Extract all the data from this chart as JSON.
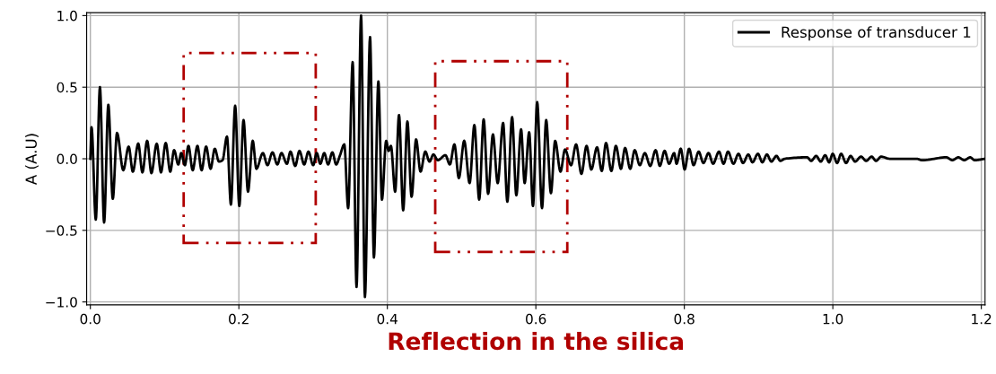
{
  "chart_data": {
    "type": "line",
    "xlabel": "Reflection in the silica",
    "ylabel": "A (A.U)",
    "xlim": [
      -0.005,
      1.205
    ],
    "ylim": [
      -1.02,
      1.02
    ],
    "xticks": [
      {
        "value": 0,
        "label": "0.0"
      },
      0.2,
      0.4,
      0.6,
      0.8,
      {
        "value": 1,
        "label": "1.0"
      },
      1.2
    ],
    "yticks": [
      {
        "value": -1,
        "label": "−1.0"
      },
      {
        "value": -0.5,
        "label": "−0.5"
      },
      {
        "value": 0,
        "label": "0.0"
      },
      0.5,
      {
        "value": 1,
        "label": "1.0"
      }
    ],
    "grid": true,
    "legend": "top right",
    "series": [
      {
        "name": "Response of transducer 1",
        "color": "#000000",
        "x": [
          0,
          0.0016,
          0.0073,
          0.0129,
          0.0185,
          0.0242,
          0.0302,
          0.0359,
          0.0443,
          0.0516,
          0.0572,
          0.0645,
          0.0701,
          0.0765,
          0.0822,
          0.0894,
          0.0951,
          0.1015,
          0.1076,
          0.1128,
          0.1184,
          0.1224,
          0.1273,
          0.1321,
          0.1378,
          0.1442,
          0.1498,
          0.1559,
          0.1619,
          0.1676,
          0.1732,
          0.178,
          0.184,
          0.1893,
          0.195,
          0.2006,
          0.2063,
          0.2123,
          0.2187,
          0.2236,
          0.2324,
          0.2385,
          0.2453,
          0.2518,
          0.2574,
          0.2647,
          0.2695,
          0.2759,
          0.2816,
          0.288,
          0.2937,
          0.3001,
          0.3049,
          0.3097,
          0.315,
          0.3202,
          0.3259,
          0.3311,
          0.3363,
          0.342,
          0.3472,
          0.3533,
          0.3585,
          0.3646,
          0.3698,
          0.3767,
          0.3819,
          0.3879,
          0.3927,
          0.3984,
          0.4017,
          0.4048,
          0.4105,
          0.4157,
          0.4213,
          0.427,
          0.4326,
          0.4387,
          0.4447,
          0.4511,
          0.4568,
          0.462,
          0.468,
          0.4782,
          0.4842,
          0.4903,
          0.4963,
          0.5035,
          0.5108,
          0.5172,
          0.5237,
          0.5297,
          0.5357,
          0.5422,
          0.5486,
          0.5559,
          0.5616,
          0.568,
          0.5737,
          0.5801,
          0.5849,
          0.591,
          0.5961,
          0.6018,
          0.6083,
          0.6139,
          0.6203,
          0.626,
          0.6332,
          0.6393,
          0.6474,
          0.6542,
          0.6614,
          0.6683,
          0.6747,
          0.6824,
          0.6888,
          0.6945,
          0.7017,
          0.7078,
          0.7146,
          0.7202,
          0.7271,
          0.7332,
          0.74,
          0.7468,
          0.7541,
          0.7613,
          0.767,
          0.7734,
          0.7795,
          0.7863,
          0.7895,
          0.7952,
          0.8004,
          0.8064,
          0.8125,
          0.8193,
          0.8257,
          0.8326,
          0.8387,
          0.8467,
          0.8528,
          0.8588,
          0.8661,
          0.8729,
          0.879,
          0.8862,
          0.8918,
          0.8991,
          0.9051,
          0.9112,
          0.9172,
          0.9241,
          0.9293,
          0.9353,
          0.9655,
          0.9708,
          0.9776,
          0.9837,
          0.9897,
          0.995,
          0.9998,
          1.0058,
          1.0111,
          1.0179,
          1.0239,
          1.03,
          1.038,
          1.0449,
          1.0522,
          1.0582,
          1.065,
          1.0764,
          1.1126,
          1.12,
          1.153,
          1.161,
          1.169,
          1.177,
          1.185,
          1.191,
          1.205
        ],
        "values": [
          0,
          0.22,
          -0.425,
          0.5,
          -0.445,
          0.377,
          -0.28,
          0.18,
          -0.08,
          0.085,
          -0.09,
          0.106,
          -0.095,
          0.125,
          -0.1,
          0.105,
          -0.095,
          0.11,
          -0.09,
          0.06,
          -0.04,
          0.04,
          -0.045,
          0.09,
          -0.08,
          0.09,
          -0.08,
          0.085,
          -0.07,
          0.07,
          -0.02,
          -0.01,
          0.155,
          -0.32,
          0.37,
          -0.33,
          0.27,
          -0.23,
          0.125,
          -0.07,
          0.04,
          -0.045,
          0.045,
          -0.04,
          0.04,
          -0.035,
          0.05,
          -0.05,
          0.055,
          -0.04,
          0.05,
          -0.045,
          0.04,
          -0.035,
          0.04,
          -0.04,
          0.045,
          -0.04,
          0.025,
          0.1,
          -0.345,
          0.675,
          -0.895,
          1.0,
          -0.965,
          0.85,
          -0.69,
          0.54,
          -0.285,
          0.125,
          0.055,
          0.09,
          -0.23,
          0.305,
          -0.36,
          0.26,
          -0.265,
          0.135,
          -0.09,
          0.05,
          -0.02,
          0.03,
          -0.01,
          0.025,
          -0.04,
          0.1,
          -0.135,
          0.125,
          -0.17,
          0.235,
          -0.285,
          0.275,
          -0.245,
          0.17,
          -0.17,
          0.25,
          -0.3,
          0.29,
          -0.255,
          0.205,
          -0.17,
          0.185,
          -0.33,
          0.395,
          -0.345,
          0.27,
          -0.24,
          0.125,
          -0.09,
          0.065,
          -0.045,
          0.1,
          -0.105,
          0.09,
          -0.075,
          0.08,
          -0.085,
          0.11,
          -0.085,
          0.09,
          -0.07,
          0.075,
          -0.07,
          0.06,
          -0.045,
          0.04,
          -0.05,
          0.06,
          -0.05,
          0.055,
          -0.035,
          0.04,
          -0.035,
          0.07,
          -0.075,
          0.07,
          -0.045,
          0.05,
          -0.03,
          0.04,
          -0.035,
          0.05,
          -0.035,
          0.05,
          -0.035,
          0.035,
          -0.03,
          0.03,
          -0.025,
          0.035,
          -0.025,
          0.03,
          -0.02,
          0.02,
          -0.015,
          0,
          0.01,
          -0.015,
          0.02,
          -0.02,
          0.025,
          -0.025,
          0.035,
          -0.03,
          0.035,
          -0.03,
          0.02,
          -0.02,
          0.015,
          -0.015,
          0.015,
          -0.015,
          0.015,
          0,
          0,
          -0.01,
          0.01,
          -0.01,
          0.01,
          -0.01,
          0.01,
          -0.01,
          0
        ]
      }
    ]
  }
}
